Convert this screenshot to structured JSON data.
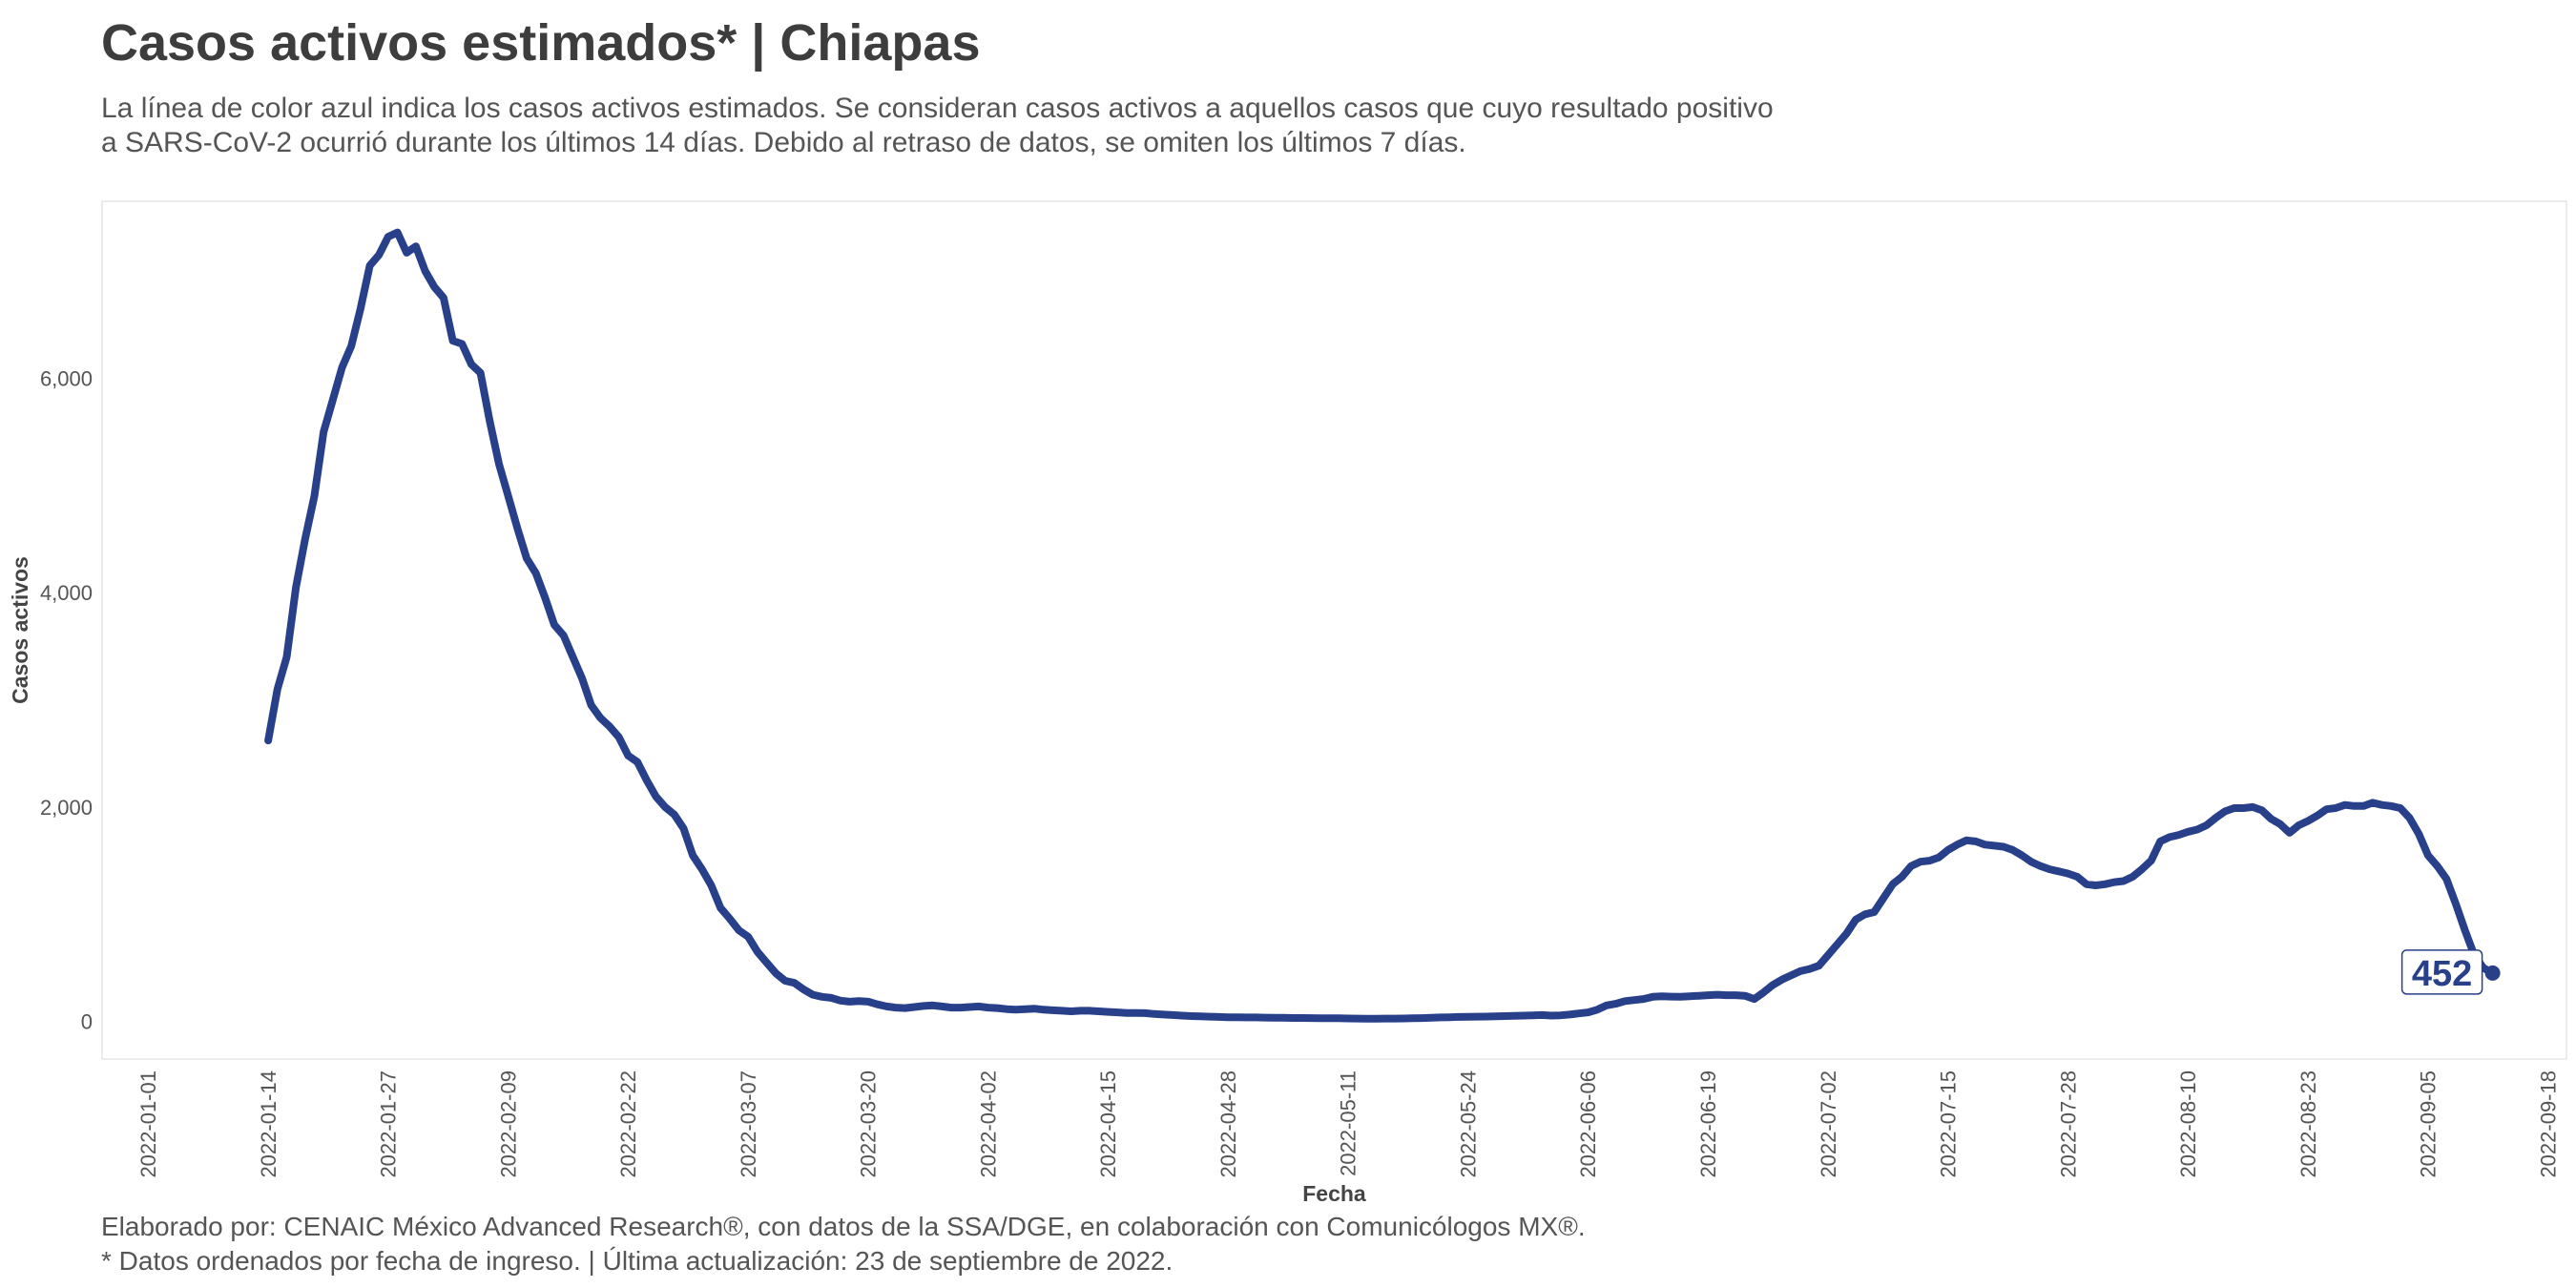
{
  "header": {
    "title": "Casos activos estimados* | Chiapas",
    "subtitle_line1": "La línea de color azul indica los casos activos estimados. Se consideran casos activos a aquellos casos que cuyo resultado positivo",
    "subtitle_line2": "a SARS-CoV-2 ocurrió durante los últimos 14 días. Debido al retraso de datos, se omiten los últimos 7 días."
  },
  "footer": {
    "caption_line1": "Elaborado por: CENAIC México Advanced Research®, con datos de la SSA/DGE, en colaboración con Comunicólogos MX®.",
    "caption_line2": "* Datos ordenados por fecha de ingreso. | Última actualización: 23 de septiembre de 2022."
  },
  "colors": {
    "line": "#283f8a",
    "panel_border": "#e6e6e6",
    "text": "#444444"
  },
  "chart_data": {
    "type": "line",
    "xlabel": "Fecha",
    "ylabel": "Casos activos",
    "x_ticks": [
      "2022-01-01",
      "2022-01-14",
      "2022-01-27",
      "2022-02-09",
      "2022-02-22",
      "2022-03-07",
      "2022-03-20",
      "2022-04-02",
      "2022-04-15",
      "2022-04-28",
      "2022-05-11",
      "2022-05-24",
      "2022-06-06",
      "2022-06-19",
      "2022-07-02",
      "2022-07-15",
      "2022-07-28",
      "2022-08-10",
      "2022-08-23",
      "2022-09-05",
      "2022-09-18"
    ],
    "y_ticks": [
      0,
      2000,
      4000,
      6000
    ],
    "y_tick_labels": [
      "0",
      "2,000",
      "4,000",
      "6,000"
    ],
    "xlim": [
      "2021-12-27",
      "2022-09-20"
    ],
    "ylim": [
      -350,
      7650
    ],
    "grid": false,
    "last_value_label": "452",
    "series": [
      {
        "points": [
          [
            "2022-01-14",
            2620
          ],
          [
            "2022-01-15",
            3100
          ],
          [
            "2022-01-16",
            3400
          ],
          [
            "2022-01-17",
            4050
          ],
          [
            "2022-01-18",
            4500
          ],
          [
            "2022-01-19",
            4900
          ],
          [
            "2022-01-20",
            5500
          ],
          [
            "2022-01-21",
            5800
          ],
          [
            "2022-01-22",
            6100
          ],
          [
            "2022-01-23",
            6300
          ],
          [
            "2022-01-24",
            6650
          ],
          [
            "2022-01-25",
            7050
          ],
          [
            "2022-01-26",
            7150
          ],
          [
            "2022-01-27",
            7320
          ],
          [
            "2022-01-28",
            7360
          ],
          [
            "2022-01-29",
            7170
          ],
          [
            "2022-01-30",
            7230
          ],
          [
            "2022-01-31",
            7000
          ],
          [
            "2022-02-01",
            6850
          ],
          [
            "2022-02-02",
            6750
          ],
          [
            "2022-02-03",
            6350
          ],
          [
            "2022-02-04",
            6320
          ],
          [
            "2022-02-05",
            6130
          ],
          [
            "2022-02-06",
            6050
          ],
          [
            "2022-02-07",
            5600
          ],
          [
            "2022-02-08",
            5200
          ],
          [
            "2022-02-09",
            4900
          ],
          [
            "2022-02-10",
            4600
          ],
          [
            "2022-02-11",
            4320
          ],
          [
            "2022-02-12",
            4180
          ],
          [
            "2022-02-13",
            3950
          ],
          [
            "2022-02-14",
            3700
          ],
          [
            "2022-02-15",
            3600
          ],
          [
            "2022-02-16",
            3400
          ],
          [
            "2022-02-17",
            3200
          ],
          [
            "2022-02-18",
            2950
          ],
          [
            "2022-02-19",
            2830
          ],
          [
            "2022-02-20",
            2750
          ],
          [
            "2022-02-21",
            2650
          ],
          [
            "2022-02-22",
            2480
          ],
          [
            "2022-02-23",
            2420
          ],
          [
            "2022-02-24",
            2250
          ],
          [
            "2022-02-25",
            2100
          ],
          [
            "2022-02-26",
            2000
          ],
          [
            "2022-02-27",
            1930
          ],
          [
            "2022-02-28",
            1800
          ],
          [
            "2022-03-01",
            1550
          ],
          [
            "2022-03-02",
            1420
          ],
          [
            "2022-03-03",
            1270
          ],
          [
            "2022-03-04",
            1060
          ],
          [
            "2022-03-05",
            960
          ],
          [
            "2022-03-06",
            850
          ],
          [
            "2022-03-07",
            790
          ],
          [
            "2022-03-08",
            650
          ],
          [
            "2022-03-09",
            550
          ],
          [
            "2022-03-10",
            450
          ],
          [
            "2022-03-11",
            380
          ],
          [
            "2022-03-12",
            360
          ],
          [
            "2022-03-13",
            300
          ],
          [
            "2022-03-14",
            250
          ],
          [
            "2022-03-15",
            230
          ],
          [
            "2022-03-16",
            220
          ],
          [
            "2022-03-17",
            195
          ],
          [
            "2022-03-18",
            185
          ],
          [
            "2022-03-19",
            190
          ],
          [
            "2022-03-20",
            185
          ],
          [
            "2022-03-21",
            160
          ],
          [
            "2022-03-22",
            140
          ],
          [
            "2022-03-23",
            130
          ],
          [
            "2022-03-24",
            125
          ],
          [
            "2022-03-25",
            135
          ],
          [
            "2022-03-26",
            145
          ],
          [
            "2022-03-27",
            150
          ],
          [
            "2022-03-28",
            140
          ],
          [
            "2022-03-29",
            130
          ],
          [
            "2022-03-30",
            130
          ],
          [
            "2022-03-31",
            135
          ],
          [
            "2022-04-01",
            140
          ],
          [
            "2022-04-02",
            130
          ],
          [
            "2022-04-03",
            125
          ],
          [
            "2022-04-04",
            115
          ],
          [
            "2022-04-05",
            110
          ],
          [
            "2022-04-06",
            115
          ],
          [
            "2022-04-07",
            120
          ],
          [
            "2022-04-08",
            110
          ],
          [
            "2022-04-09",
            105
          ],
          [
            "2022-04-10",
            100
          ],
          [
            "2022-04-11",
            95
          ],
          [
            "2022-04-12",
            100
          ],
          [
            "2022-04-13",
            100
          ],
          [
            "2022-04-14",
            95
          ],
          [
            "2022-04-15",
            90
          ],
          [
            "2022-04-16",
            85
          ],
          [
            "2022-04-17",
            80
          ],
          [
            "2022-04-18",
            80
          ],
          [
            "2022-04-19",
            78
          ],
          [
            "2022-04-20",
            70
          ],
          [
            "2022-04-21",
            65
          ],
          [
            "2022-04-22",
            60
          ],
          [
            "2022-04-23",
            55
          ],
          [
            "2022-04-24",
            50
          ],
          [
            "2022-04-25",
            48
          ],
          [
            "2022-04-26",
            45
          ],
          [
            "2022-04-27",
            42
          ],
          [
            "2022-04-28",
            40
          ],
          [
            "2022-04-29",
            40
          ],
          [
            "2022-04-30",
            38
          ],
          [
            "2022-05-01",
            38
          ],
          [
            "2022-05-02",
            36
          ],
          [
            "2022-05-03",
            35
          ],
          [
            "2022-05-04",
            34
          ],
          [
            "2022-05-05",
            33
          ],
          [
            "2022-05-06",
            33
          ],
          [
            "2022-05-07",
            32
          ],
          [
            "2022-05-08",
            31
          ],
          [
            "2022-05-09",
            30
          ],
          [
            "2022-05-10",
            30
          ],
          [
            "2022-05-11",
            28
          ],
          [
            "2022-05-12",
            27
          ],
          [
            "2022-05-13",
            26
          ],
          [
            "2022-05-14",
            26
          ],
          [
            "2022-05-15",
            27
          ],
          [
            "2022-05-16",
            27
          ],
          [
            "2022-05-17",
            28
          ],
          [
            "2022-05-18",
            30
          ],
          [
            "2022-05-19",
            32
          ],
          [
            "2022-05-20",
            35
          ],
          [
            "2022-05-21",
            38
          ],
          [
            "2022-05-22",
            40
          ],
          [
            "2022-05-23",
            42
          ],
          [
            "2022-05-24",
            44
          ],
          [
            "2022-05-25",
            45
          ],
          [
            "2022-05-26",
            46
          ],
          [
            "2022-05-27",
            48
          ],
          [
            "2022-05-28",
            50
          ],
          [
            "2022-05-29",
            52
          ],
          [
            "2022-05-30",
            55
          ],
          [
            "2022-05-31",
            58
          ],
          [
            "2022-06-01",
            60
          ],
          [
            "2022-06-02",
            55
          ],
          [
            "2022-06-03",
            58
          ],
          [
            "2022-06-04",
            65
          ],
          [
            "2022-06-05",
            75
          ],
          [
            "2022-06-06",
            85
          ],
          [
            "2022-06-07",
            110
          ],
          [
            "2022-06-08",
            150
          ],
          [
            "2022-06-09",
            165
          ],
          [
            "2022-06-10",
            190
          ],
          [
            "2022-06-11",
            200
          ],
          [
            "2022-06-12",
            210
          ],
          [
            "2022-06-13",
            230
          ],
          [
            "2022-06-14",
            235
          ],
          [
            "2022-06-15",
            232
          ],
          [
            "2022-06-16",
            230
          ],
          [
            "2022-06-17",
            235
          ],
          [
            "2022-06-18",
            240
          ],
          [
            "2022-06-19",
            245
          ],
          [
            "2022-06-20",
            250
          ],
          [
            "2022-06-21",
            245
          ],
          [
            "2022-06-22",
            245
          ],
          [
            "2022-06-23",
            240
          ],
          [
            "2022-06-24",
            210
          ],
          [
            "2022-06-25",
            270
          ],
          [
            "2022-06-26",
            340
          ],
          [
            "2022-06-27",
            390
          ],
          [
            "2022-06-28",
            430
          ],
          [
            "2022-06-29",
            470
          ],
          [
            "2022-06-30",
            490
          ],
          [
            "2022-07-01",
            520
          ],
          [
            "2022-07-02",
            620
          ],
          [
            "2022-07-03",
            720
          ],
          [
            "2022-07-04",
            820
          ],
          [
            "2022-07-05",
            950
          ],
          [
            "2022-07-06",
            1000
          ],
          [
            "2022-07-07",
            1020
          ],
          [
            "2022-07-08",
            1150
          ],
          [
            "2022-07-09",
            1280
          ],
          [
            "2022-07-10",
            1350
          ],
          [
            "2022-07-11",
            1450
          ],
          [
            "2022-07-12",
            1490
          ],
          [
            "2022-07-13",
            1500
          ],
          [
            "2022-07-14",
            1530
          ],
          [
            "2022-07-15",
            1600
          ],
          [
            "2022-07-16",
            1650
          ],
          [
            "2022-07-17",
            1690
          ],
          [
            "2022-07-18",
            1680
          ],
          [
            "2022-07-19",
            1650
          ],
          [
            "2022-07-20",
            1640
          ],
          [
            "2022-07-21",
            1630
          ],
          [
            "2022-07-22",
            1600
          ],
          [
            "2022-07-23",
            1550
          ],
          [
            "2022-07-24",
            1490
          ],
          [
            "2022-07-25",
            1450
          ],
          [
            "2022-07-26",
            1420
          ],
          [
            "2022-07-27",
            1400
          ],
          [
            "2022-07-28",
            1380
          ],
          [
            "2022-07-29",
            1350
          ],
          [
            "2022-07-30",
            1280
          ],
          [
            "2022-07-31",
            1270
          ],
          [
            "2022-08-01",
            1280
          ],
          [
            "2022-08-02",
            1300
          ],
          [
            "2022-08-03",
            1310
          ],
          [
            "2022-08-04",
            1350
          ],
          [
            "2022-08-05",
            1420
          ],
          [
            "2022-08-06",
            1500
          ],
          [
            "2022-08-07",
            1680
          ],
          [
            "2022-08-08",
            1720
          ],
          [
            "2022-08-09",
            1740
          ],
          [
            "2022-08-10",
            1770
          ],
          [
            "2022-08-11",
            1790
          ],
          [
            "2022-08-12",
            1830
          ],
          [
            "2022-08-13",
            1900
          ],
          [
            "2022-08-14",
            1960
          ],
          [
            "2022-08-15",
            1990
          ],
          [
            "2022-08-16",
            1990
          ],
          [
            "2022-08-17",
            2000
          ],
          [
            "2022-08-18",
            1970
          ],
          [
            "2022-08-19",
            1890
          ],
          [
            "2022-08-20",
            1840
          ],
          [
            "2022-08-21",
            1760
          ],
          [
            "2022-08-22",
            1830
          ],
          [
            "2022-08-23",
            1870
          ],
          [
            "2022-08-24",
            1920
          ],
          [
            "2022-08-25",
            1980
          ],
          [
            "2022-08-26",
            1990
          ],
          [
            "2022-08-27",
            2020
          ],
          [
            "2022-08-28",
            2010
          ],
          [
            "2022-08-29",
            2010
          ],
          [
            "2022-08-30",
            2040
          ],
          [
            "2022-08-31",
            2020
          ],
          [
            "2022-09-01",
            2010
          ],
          [
            "2022-09-02",
            1990
          ],
          [
            "2022-09-03",
            1900
          ],
          [
            "2022-09-04",
            1750
          ],
          [
            "2022-09-05",
            1550
          ],
          [
            "2022-09-06",
            1450
          ],
          [
            "2022-09-07",
            1330
          ],
          [
            "2022-09-08",
            1100
          ],
          [
            "2022-09-09",
            850
          ],
          [
            "2022-09-10",
            620
          ],
          [
            "2022-09-11",
            500
          ],
          [
            "2022-09-12",
            452
          ]
        ]
      }
    ]
  }
}
